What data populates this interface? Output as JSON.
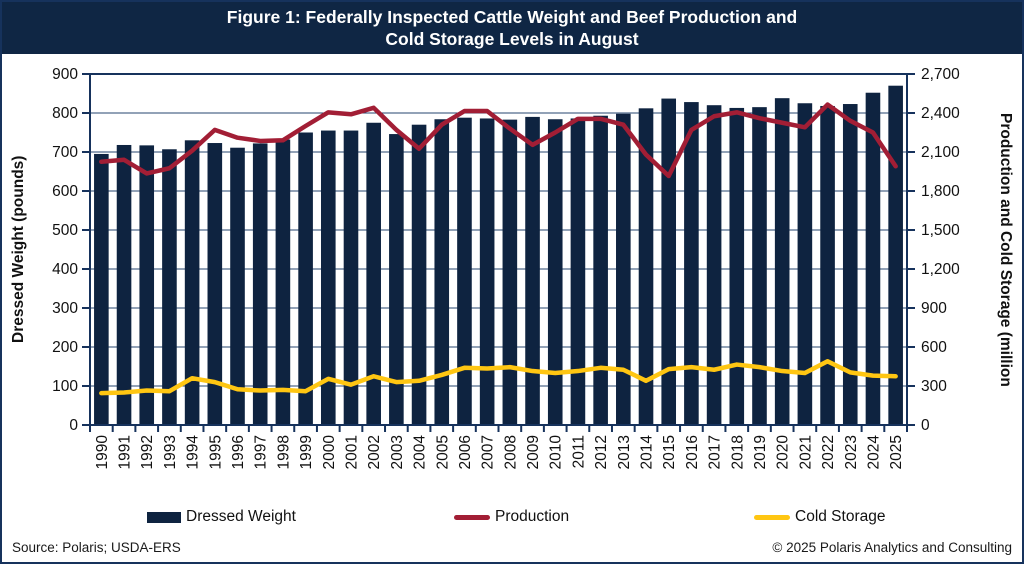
{
  "header": {
    "line1": "Figure 1: Federally Inspected Cattle Weight and Beef Production and",
    "line2": "Cold Storage Levels in August"
  },
  "footer": {
    "source": "Source: Polaris; USDA-ERS",
    "copyright": "© 2025 Polaris Analytics and Consulting"
  },
  "colors": {
    "title_bar": "#0F2644",
    "bar": "#0E2340",
    "production_line": "#A21E35",
    "cold_storage_line": "#FFC612",
    "axis": "#16325C",
    "gridline": "#26456F",
    "text": "#111111"
  },
  "chart_data": {
    "type": "bar",
    "subtype": "combo-bar-line",
    "categories": [
      "1990",
      "1991",
      "1992",
      "1993",
      "1994",
      "1995",
      "1996",
      "1997",
      "1998",
      "1999",
      "2000",
      "2001",
      "2002",
      "2003",
      "2004",
      "2005",
      "2006",
      "2007",
      "2008",
      "2009",
      "2010",
      "2011",
      "2012",
      "2013",
      "2014",
      "2015",
      "2016",
      "2017",
      "2018",
      "2019",
      "2020",
      "2021",
      "2022",
      "2023",
      "2024",
      "2025"
    ],
    "series": [
      {
        "name": "Dressed Weight",
        "type": "bar",
        "axis": "left",
        "color": "#0E2340",
        "values": [
          695,
          718,
          717,
          707,
          730,
          723,
          711,
          722,
          732,
          750,
          755,
          755,
          775,
          746,
          770,
          784,
          788,
          786,
          783,
          790,
          784,
          786,
          793,
          798,
          812,
          837,
          828,
          820,
          813,
          815,
          838,
          825,
          818,
          823,
          852,
          870
        ]
      },
      {
        "name": "Production",
        "type": "line",
        "axis": "right",
        "color": "#A21E35",
        "values": [
          2025,
          2040,
          1935,
          1975,
          2110,
          2270,
          2210,
          2185,
          2190,
          2300,
          2405,
          2390,
          2440,
          2270,
          2125,
          2310,
          2415,
          2415,
          2280,
          2155,
          2250,
          2355,
          2355,
          2310,
          2080,
          1915,
          2270,
          2375,
          2405,
          2360,
          2325,
          2290,
          2465,
          2340,
          2250,
          1990
        ]
      },
      {
        "name": "Cold Storage",
        "type": "line",
        "axis": "right",
        "color": "#FFC612",
        "values": [
          245,
          250,
          265,
          260,
          360,
          330,
          275,
          265,
          270,
          260,
          355,
          310,
          375,
          330,
          340,
          385,
          440,
          435,
          445,
          415,
          400,
          415,
          440,
          425,
          340,
          430,
          445,
          425,
          465,
          445,
          415,
          400,
          490,
          405,
          380,
          375
        ]
      }
    ],
    "left_axis": {
      "label": "Dressed Weight (pounds)",
      "min": 0,
      "max": 900,
      "step": 100
    },
    "right_axis": {
      "label": "Production and Cold Storage (million",
      "min": 0,
      "max": 2700,
      "step": 300
    },
    "grid": true,
    "legend_position": "bottom"
  }
}
